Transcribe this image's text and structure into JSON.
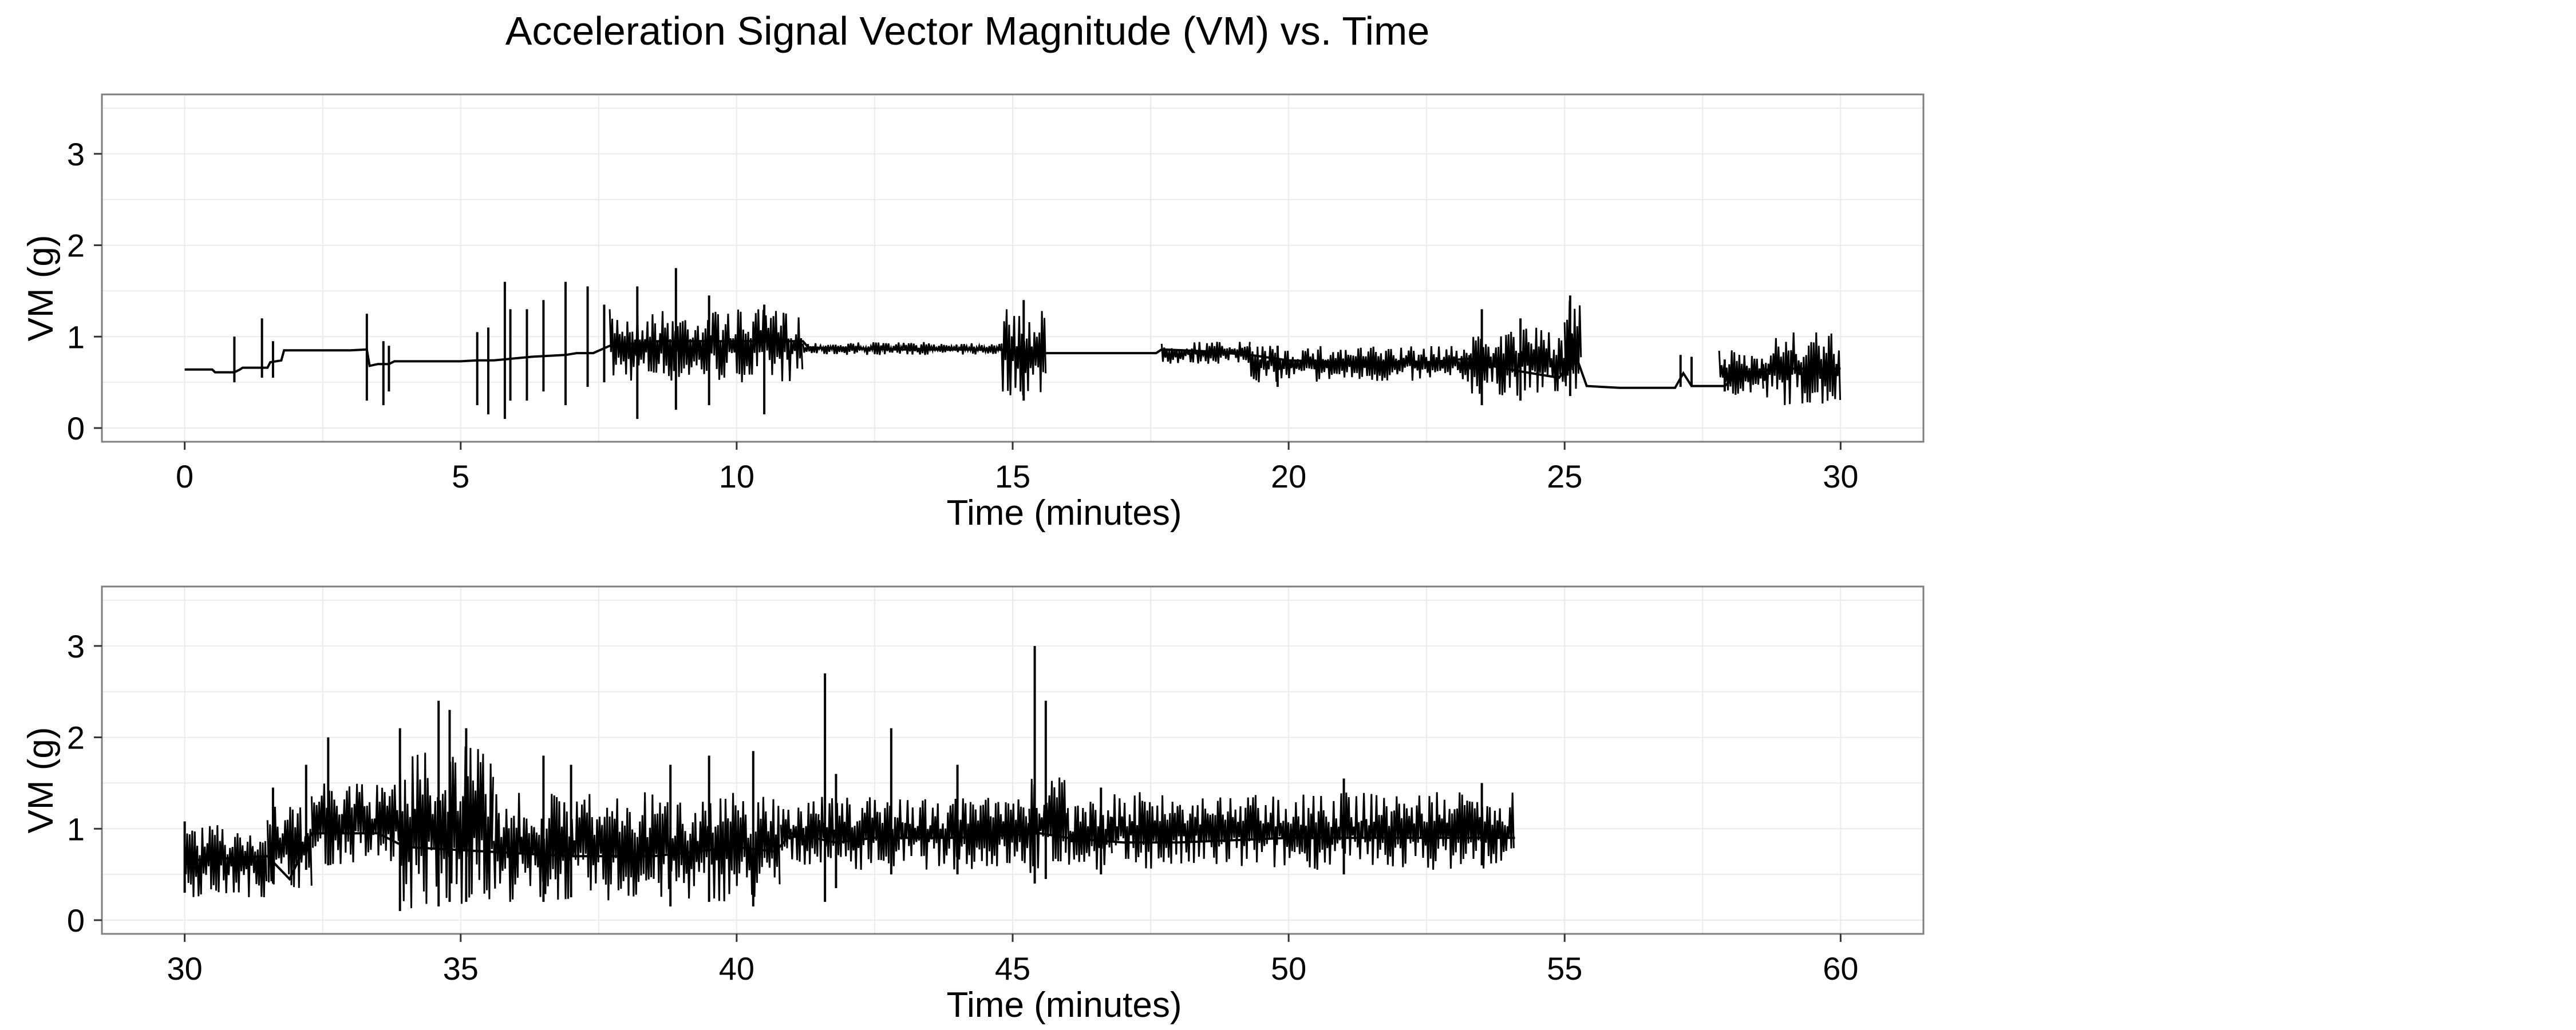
{
  "figure": {
    "title": "Acceleration Signal Vector Magnitude (VM) vs. Time"
  },
  "colors": {
    "signal": "#000000",
    "panel_border": "#7f7f7f",
    "grid": "#ebebeb",
    "background": "#ffffff"
  },
  "chart_data": [
    {
      "type": "line",
      "title": "",
      "xlabel": "Time (minutes)",
      "ylabel": "VM (g)",
      "xlim": [
        -1.5,
        31.5
      ],
      "ylim": [
        -0.15,
        3.65
      ],
      "xticks": [
        0,
        5,
        10,
        15,
        20,
        25,
        30
      ],
      "yticks": [
        0,
        1,
        2,
        3
      ],
      "grid": true,
      "legend": "none",
      "series": [
        {
          "x": [
            0,
            0.5,
            0.55,
            0.9,
            1.0,
            1.05,
            1.5,
            1.55,
            1.75,
            1.8,
            3.0,
            3.3,
            3.35,
            3.5,
            3.7,
            3.8,
            5.0,
            5.3,
            5.6,
            6.3,
            6.9,
            7.1,
            7.4,
            7.7,
            8.6,
            9.5,
            10.2,
            11.2,
            11.3,
            13.0,
            14.8,
            15.3,
            15.6,
            16.0,
            17.6,
            17.7,
            18.5,
            19.3,
            20.0,
            21.0,
            22.5,
            23.3,
            23.5,
            24.2,
            24.9,
            25.2,
            25.4,
            26.0,
            27.0,
            27.15,
            27.3,
            27.9,
            28.2,
            28.6,
            28.7,
            29.5,
            30.0
          ],
          "y": [
            0.64,
            0.64,
            0.61,
            0.61,
            0.64,
            0.66,
            0.66,
            0.72,
            0.74,
            0.85,
            0.85,
            0.86,
            0.68,
            0.7,
            0.7,
            0.73,
            0.73,
            0.74,
            0.74,
            0.78,
            0.8,
            0.82,
            0.82,
            0.9,
            0.95,
            0.95,
            0.95,
            0.95,
            0.88,
            0.86,
            0.86,
            0.84,
            0.82,
            0.82,
            0.82,
            0.86,
            0.84,
            0.8,
            0.74,
            0.72,
            0.72,
            0.76,
            0.7,
            0.62,
            0.55,
            0.8,
            0.46,
            0.44,
            0.44,
            0.6,
            0.46,
            0.46,
            0.62,
            0.6,
            0.65,
            0.65,
            0.65
          ],
          "envelope": [
            {
              "from": 7.7,
              "to": 11.2,
              "min": 0.5,
              "max": 1.3
            },
            {
              "from": 11.2,
              "to": 14.8,
              "min": 0.8,
              "max": 0.94
            },
            {
              "from": 14.8,
              "to": 15.6,
              "min": 0.35,
              "max": 1.3
            },
            {
              "from": 17.7,
              "to": 19.3,
              "min": 0.7,
              "max": 0.95
            },
            {
              "from": 19.3,
              "to": 23.3,
              "min": 0.5,
              "max": 0.9
            },
            {
              "from": 23.3,
              "to": 25.2,
              "min": 0.35,
              "max": 1.1
            },
            {
              "from": 25.0,
              "to": 25.3,
              "min": 0.4,
              "max": 1.4
            },
            {
              "from": 27.8,
              "to": 28.6,
              "min": 0.35,
              "max": 0.85
            },
            {
              "from": 28.6,
              "to": 30.0,
              "min": 0.25,
              "max": 1.05
            }
          ],
          "spikes": [
            {
              "x": 0.9,
              "lo": 0.5,
              "hi": 1.0
            },
            {
              "x": 1.4,
              "lo": 0.55,
              "hi": 1.2
            },
            {
              "x": 1.6,
              "lo": 0.55,
              "hi": 0.95
            },
            {
              "x": 3.3,
              "lo": 0.3,
              "hi": 1.25
            },
            {
              "x": 3.6,
              "lo": 0.25,
              "hi": 0.95
            },
            {
              "x": 3.7,
              "lo": 0.4,
              "hi": 0.9
            },
            {
              "x": 5.3,
              "lo": 0.25,
              "hi": 1.05
            },
            {
              "x": 5.5,
              "lo": 0.15,
              "hi": 1.1
            },
            {
              "x": 5.8,
              "lo": 0.1,
              "hi": 1.6
            },
            {
              "x": 5.9,
              "lo": 0.3,
              "hi": 1.3
            },
            {
              "x": 6.2,
              "lo": 0.3,
              "hi": 1.3
            },
            {
              "x": 6.5,
              "lo": 0.4,
              "hi": 1.4
            },
            {
              "x": 6.9,
              "lo": 0.25,
              "hi": 1.6
            },
            {
              "x": 7.3,
              "lo": 0.45,
              "hi": 1.55
            },
            {
              "x": 7.6,
              "lo": 0.5,
              "hi": 1.35
            },
            {
              "x": 8.2,
              "lo": 0.1,
              "hi": 1.55
            },
            {
              "x": 8.9,
              "lo": 0.2,
              "hi": 1.75
            },
            {
              "x": 9.5,
              "lo": 0.25,
              "hi": 1.45
            },
            {
              "x": 10.5,
              "lo": 0.15,
              "hi": 1.35
            },
            {
              "x": 15.2,
              "lo": 0.3,
              "hi": 1.4
            },
            {
              "x": 19.8,
              "lo": 0.45,
              "hi": 0.9
            },
            {
              "x": 23.5,
              "lo": 0.25,
              "hi": 1.3
            },
            {
              "x": 24.2,
              "lo": 0.3,
              "hi": 1.2
            },
            {
              "x": 25.1,
              "lo": 0.35,
              "hi": 1.45
            },
            {
              "x": 27.1,
              "lo": 0.45,
              "hi": 0.8
            },
            {
              "x": 27.3,
              "lo": 0.45,
              "hi": 0.78
            },
            {
              "x": 27.9,
              "lo": 0.4,
              "hi": 0.75
            }
          ]
        }
      ]
    },
    {
      "type": "line",
      "title": "",
      "xlabel": "Time (minutes)",
      "ylabel": "VM (g)",
      "xlim": [
        28.5,
        61.5
      ],
      "ylim": [
        -0.15,
        3.65
      ],
      "xticks": [
        30,
        35,
        40,
        45,
        50,
        55,
        60
      ],
      "yticks": [
        0,
        1,
        2,
        3
      ],
      "grid": true,
      "legend": "none",
      "series": [
        {
          "x": [
            30.0,
            31.5,
            31.9,
            32.3,
            33.5,
            34.0,
            35.5,
            37.0,
            38.5,
            40.0,
            40.7,
            41.0,
            41.8,
            42.5,
            44.0,
            45.5,
            46.0,
            47.0,
            48.0,
            50.0,
            52.0,
            54.1
          ],
          "y": [
            0.65,
            0.7,
            0.45,
            0.95,
            0.95,
            0.8,
            0.75,
            0.7,
            0.7,
            0.8,
            0.75,
            0.95,
            0.85,
            0.9,
            0.9,
            0.95,
            0.9,
            0.85,
            0.85,
            0.9,
            0.9,
            0.9
          ],
          "envelope": [
            {
              "from": 30.0,
              "to": 31.5,
              "min": 0.25,
              "max": 1.05
            },
            {
              "from": 31.5,
              "to": 32.3,
              "min": 0.35,
              "max": 1.25
            },
            {
              "from": 32.3,
              "to": 33.9,
              "min": 0.6,
              "max": 1.5
            },
            {
              "from": 33.9,
              "to": 35.6,
              "min": 0.1,
              "max": 1.9
            },
            {
              "from": 35.6,
              "to": 40.8,
              "min": 0.2,
              "max": 1.4
            },
            {
              "from": 40.8,
              "to": 41.5,
              "min": 0.6,
              "max": 1.3
            },
            {
              "from": 41.5,
              "to": 45.3,
              "min": 0.55,
              "max": 1.35
            },
            {
              "from": 45.3,
              "to": 46.0,
              "min": 0.5,
              "max": 1.6
            },
            {
              "from": 46.0,
              "to": 46.8,
              "min": 0.55,
              "max": 1.3
            },
            {
              "from": 46.8,
              "to": 54.1,
              "min": 0.55,
              "max": 1.4
            }
          ],
          "spikes": [
            {
              "x": 30.0,
              "lo": 0.3,
              "hi": 1.08
            },
            {
              "x": 31.6,
              "lo": 0.4,
              "hi": 1.45
            },
            {
              "x": 32.2,
              "lo": 0.55,
              "hi": 1.7
            },
            {
              "x": 32.6,
              "lo": 0.6,
              "hi": 2.0
            },
            {
              "x": 33.9,
              "lo": 0.1,
              "hi": 2.1
            },
            {
              "x": 34.6,
              "lo": 0.15,
              "hi": 2.4
            },
            {
              "x": 34.8,
              "lo": 0.2,
              "hi": 2.3
            },
            {
              "x": 35.1,
              "lo": 0.2,
              "hi": 2.1
            },
            {
              "x": 36.5,
              "lo": 0.2,
              "hi": 1.8
            },
            {
              "x": 37.0,
              "lo": 0.25,
              "hi": 1.7
            },
            {
              "x": 38.8,
              "lo": 0.15,
              "hi": 1.7
            },
            {
              "x": 39.5,
              "lo": 0.2,
              "hi": 1.8
            },
            {
              "x": 40.3,
              "lo": 0.15,
              "hi": 1.85
            },
            {
              "x": 41.6,
              "lo": 0.2,
              "hi": 2.7
            },
            {
              "x": 41.8,
              "lo": 0.35,
              "hi": 1.6
            },
            {
              "x": 42.8,
              "lo": 0.5,
              "hi": 2.1
            },
            {
              "x": 44.0,
              "lo": 0.5,
              "hi": 1.7
            },
            {
              "x": 45.4,
              "lo": 0.4,
              "hi": 3.0
            },
            {
              "x": 45.6,
              "lo": 0.45,
              "hi": 2.4
            },
            {
              "x": 46.6,
              "lo": 0.5,
              "hi": 1.45
            },
            {
              "x": 51.0,
              "lo": 0.5,
              "hi": 1.55
            },
            {
              "x": 53.5,
              "lo": 0.6,
              "hi": 1.5
            }
          ]
        }
      ]
    }
  ]
}
